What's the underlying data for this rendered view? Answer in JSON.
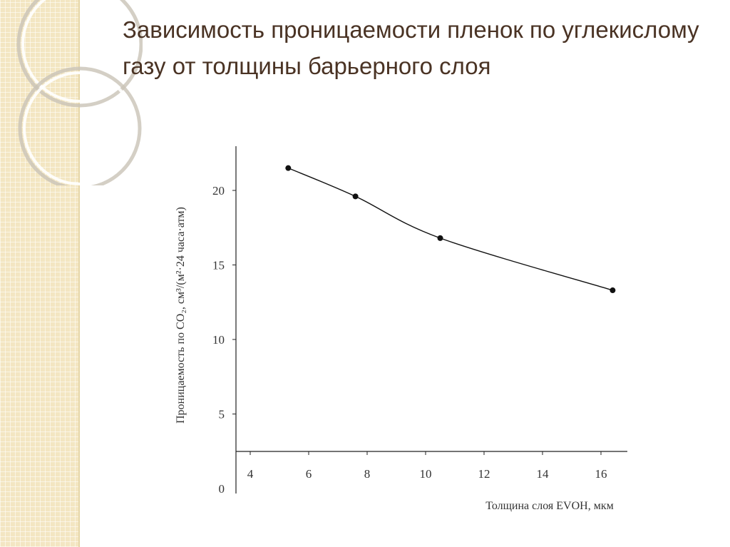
{
  "slide": {
    "title": "Зависимость проницаемости пленок по углекислому газу от толщины барьерного слоя"
  },
  "colors": {
    "side_panel": "#f3e6c2",
    "title_text": "#4a3324",
    "axis": "#222222",
    "series": "#111111"
  },
  "chart_data": {
    "type": "line",
    "title": "",
    "xlabel": "Толщина слоя EVOH, мкм",
    "ylabel": "Проницаемость по CO₂, см³/(м²·24 часа·атм)",
    "xlim": [
      3.5,
      17
    ],
    "ylim": [
      0,
      22
    ],
    "xticks": [
      4,
      6,
      8,
      10,
      12,
      14,
      16
    ],
    "yticks": [
      0,
      5,
      10,
      15,
      20
    ],
    "grid": false,
    "series": [
      {
        "x": [
          5.3,
          7.6,
          10.5,
          16.4
        ],
        "y": [
          21.5,
          19.6,
          16.8,
          13.3
        ]
      }
    ]
  }
}
